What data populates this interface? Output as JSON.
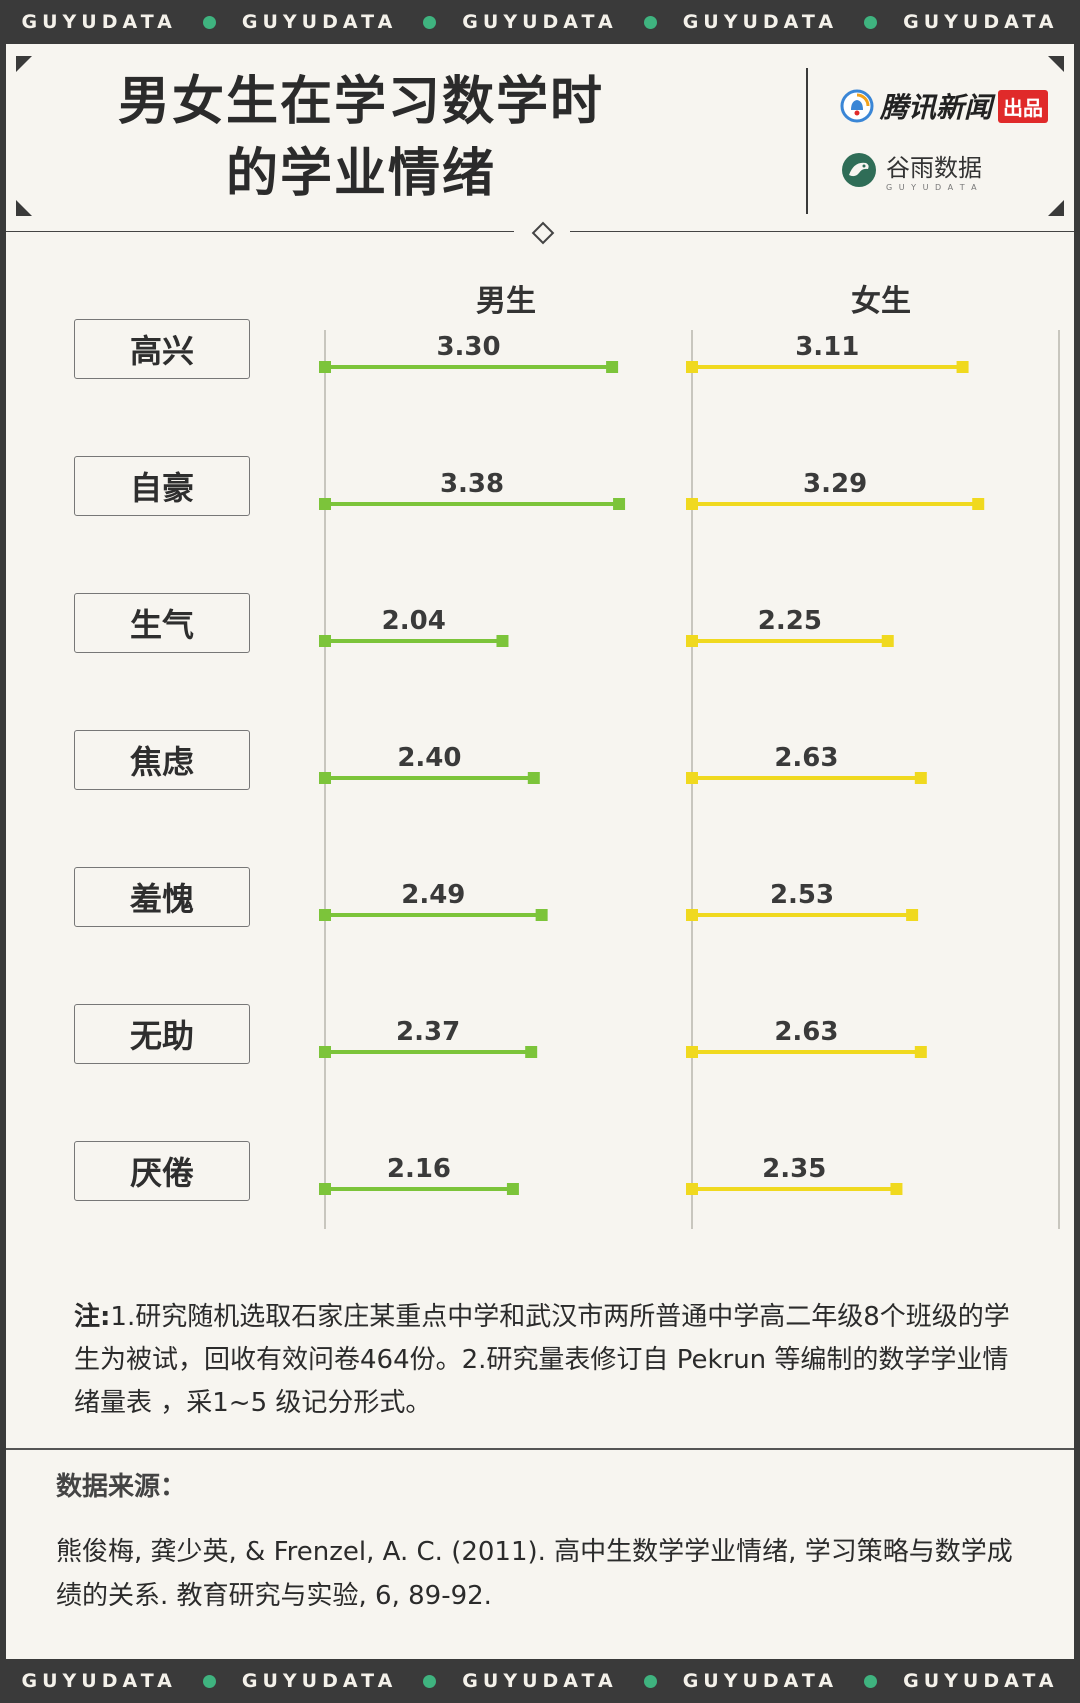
{
  "band_text": "GUYUDATA",
  "title_line1": "男女生在学习数学时",
  "title_line2": "的学业情绪",
  "brand1": {
    "name": "腾讯新闻",
    "tag": "出品"
  },
  "brand2": {
    "name": "谷雨数据",
    "sub": "G U Y U D A T A"
  },
  "colors": {
    "male": "#7cc43a",
    "female": "#f0d91f",
    "dots": "#3fb37f"
  },
  "chart_data": {
    "type": "bar",
    "categories": [
      "高兴",
      "自豪",
      "生气",
      "焦虑",
      "羞愧",
      "无助",
      "厌倦"
    ],
    "series": [
      {
        "name": "男生",
        "values": [
          3.3,
          3.38,
          2.04,
          2.4,
          2.49,
          2.37,
          2.16
        ]
      },
      {
        "name": "女生",
        "values": [
          3.11,
          3.29,
          2.25,
          2.63,
          2.53,
          2.63,
          2.35
        ]
      }
    ],
    "value_labels": {
      "男生": [
        "3.30",
        "3.38",
        "2.04",
        "2.40",
        "2.49",
        "2.37",
        "2.16"
      ],
      "女生": [
        "3.11",
        "3.29",
        "2.25",
        "2.63",
        "2.53",
        "2.63",
        "2.35"
      ]
    },
    "orientation": "horizontal",
    "scale": "1~5"
  },
  "note": {
    "label": "注:",
    "text": "1.研究随机选取石家庄某重点中学和武汉市两所普通中学高二年级8个班级的学生为被试，回收有效问卷464份。2.研究量表修订自 Pekrun 等编制的数学学业情绪量表 ，采1~5 级记分形式。"
  },
  "source": {
    "title": "数据来源：",
    "text": "熊俊梅, 龚少英, & Frenzel, A. C. (2011). 高中生数学学业情绪, 学习策略与数学成绩的关系. 教育研究与实验, 6, 89-92."
  }
}
